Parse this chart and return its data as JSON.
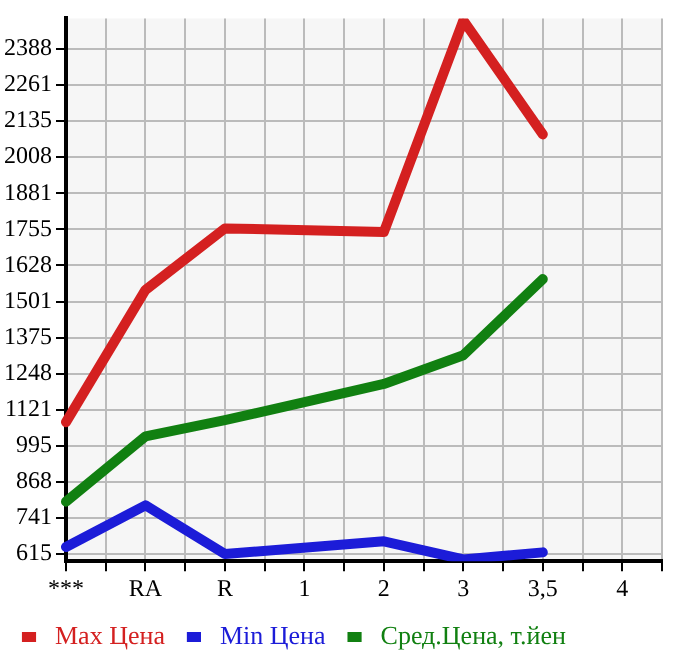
{
  "chart_data": {
    "type": "line",
    "categories": [
      "***",
      null,
      "RA",
      null,
      "R",
      null,
      "1",
      null,
      "2",
      null,
      "3",
      null,
      "3,5",
      null,
      "4",
      null
    ],
    "series": [
      {
        "name": "Max Цена",
        "color": "#d42020",
        "values": [
          1078,
          null,
          1542,
          null,
          1758,
          null,
          null,
          null,
          1745,
          null,
          2488,
          null,
          2088,
          null,
          null,
          null
        ]
      },
      {
        "name": "Min Цена",
        "color": "#1c1cd8",
        "values": [
          640,
          null,
          786,
          null,
          615,
          null,
          null,
          null,
          660,
          null,
          596,
          null,
          621,
          null,
          null,
          null
        ]
      },
      {
        "name": "Сред.Цена, т.йен",
        "color": "#118011",
        "values": [
          799,
          null,
          1028,
          null,
          1085,
          null,
          1148,
          null,
          1212,
          null,
          1313,
          null,
          1580,
          null,
          null,
          null
        ]
      }
    ],
    "ylim": [
      590,
      2495
    ],
    "yticks": [
      615,
      741,
      868,
      995,
      1121,
      1248,
      1375,
      1501,
      1628,
      1755,
      1881,
      2008,
      2135,
      2261,
      2388
    ],
    "grid": true,
    "legend": "bottom",
    "marker": "none",
    "line_style": "solid"
  }
}
